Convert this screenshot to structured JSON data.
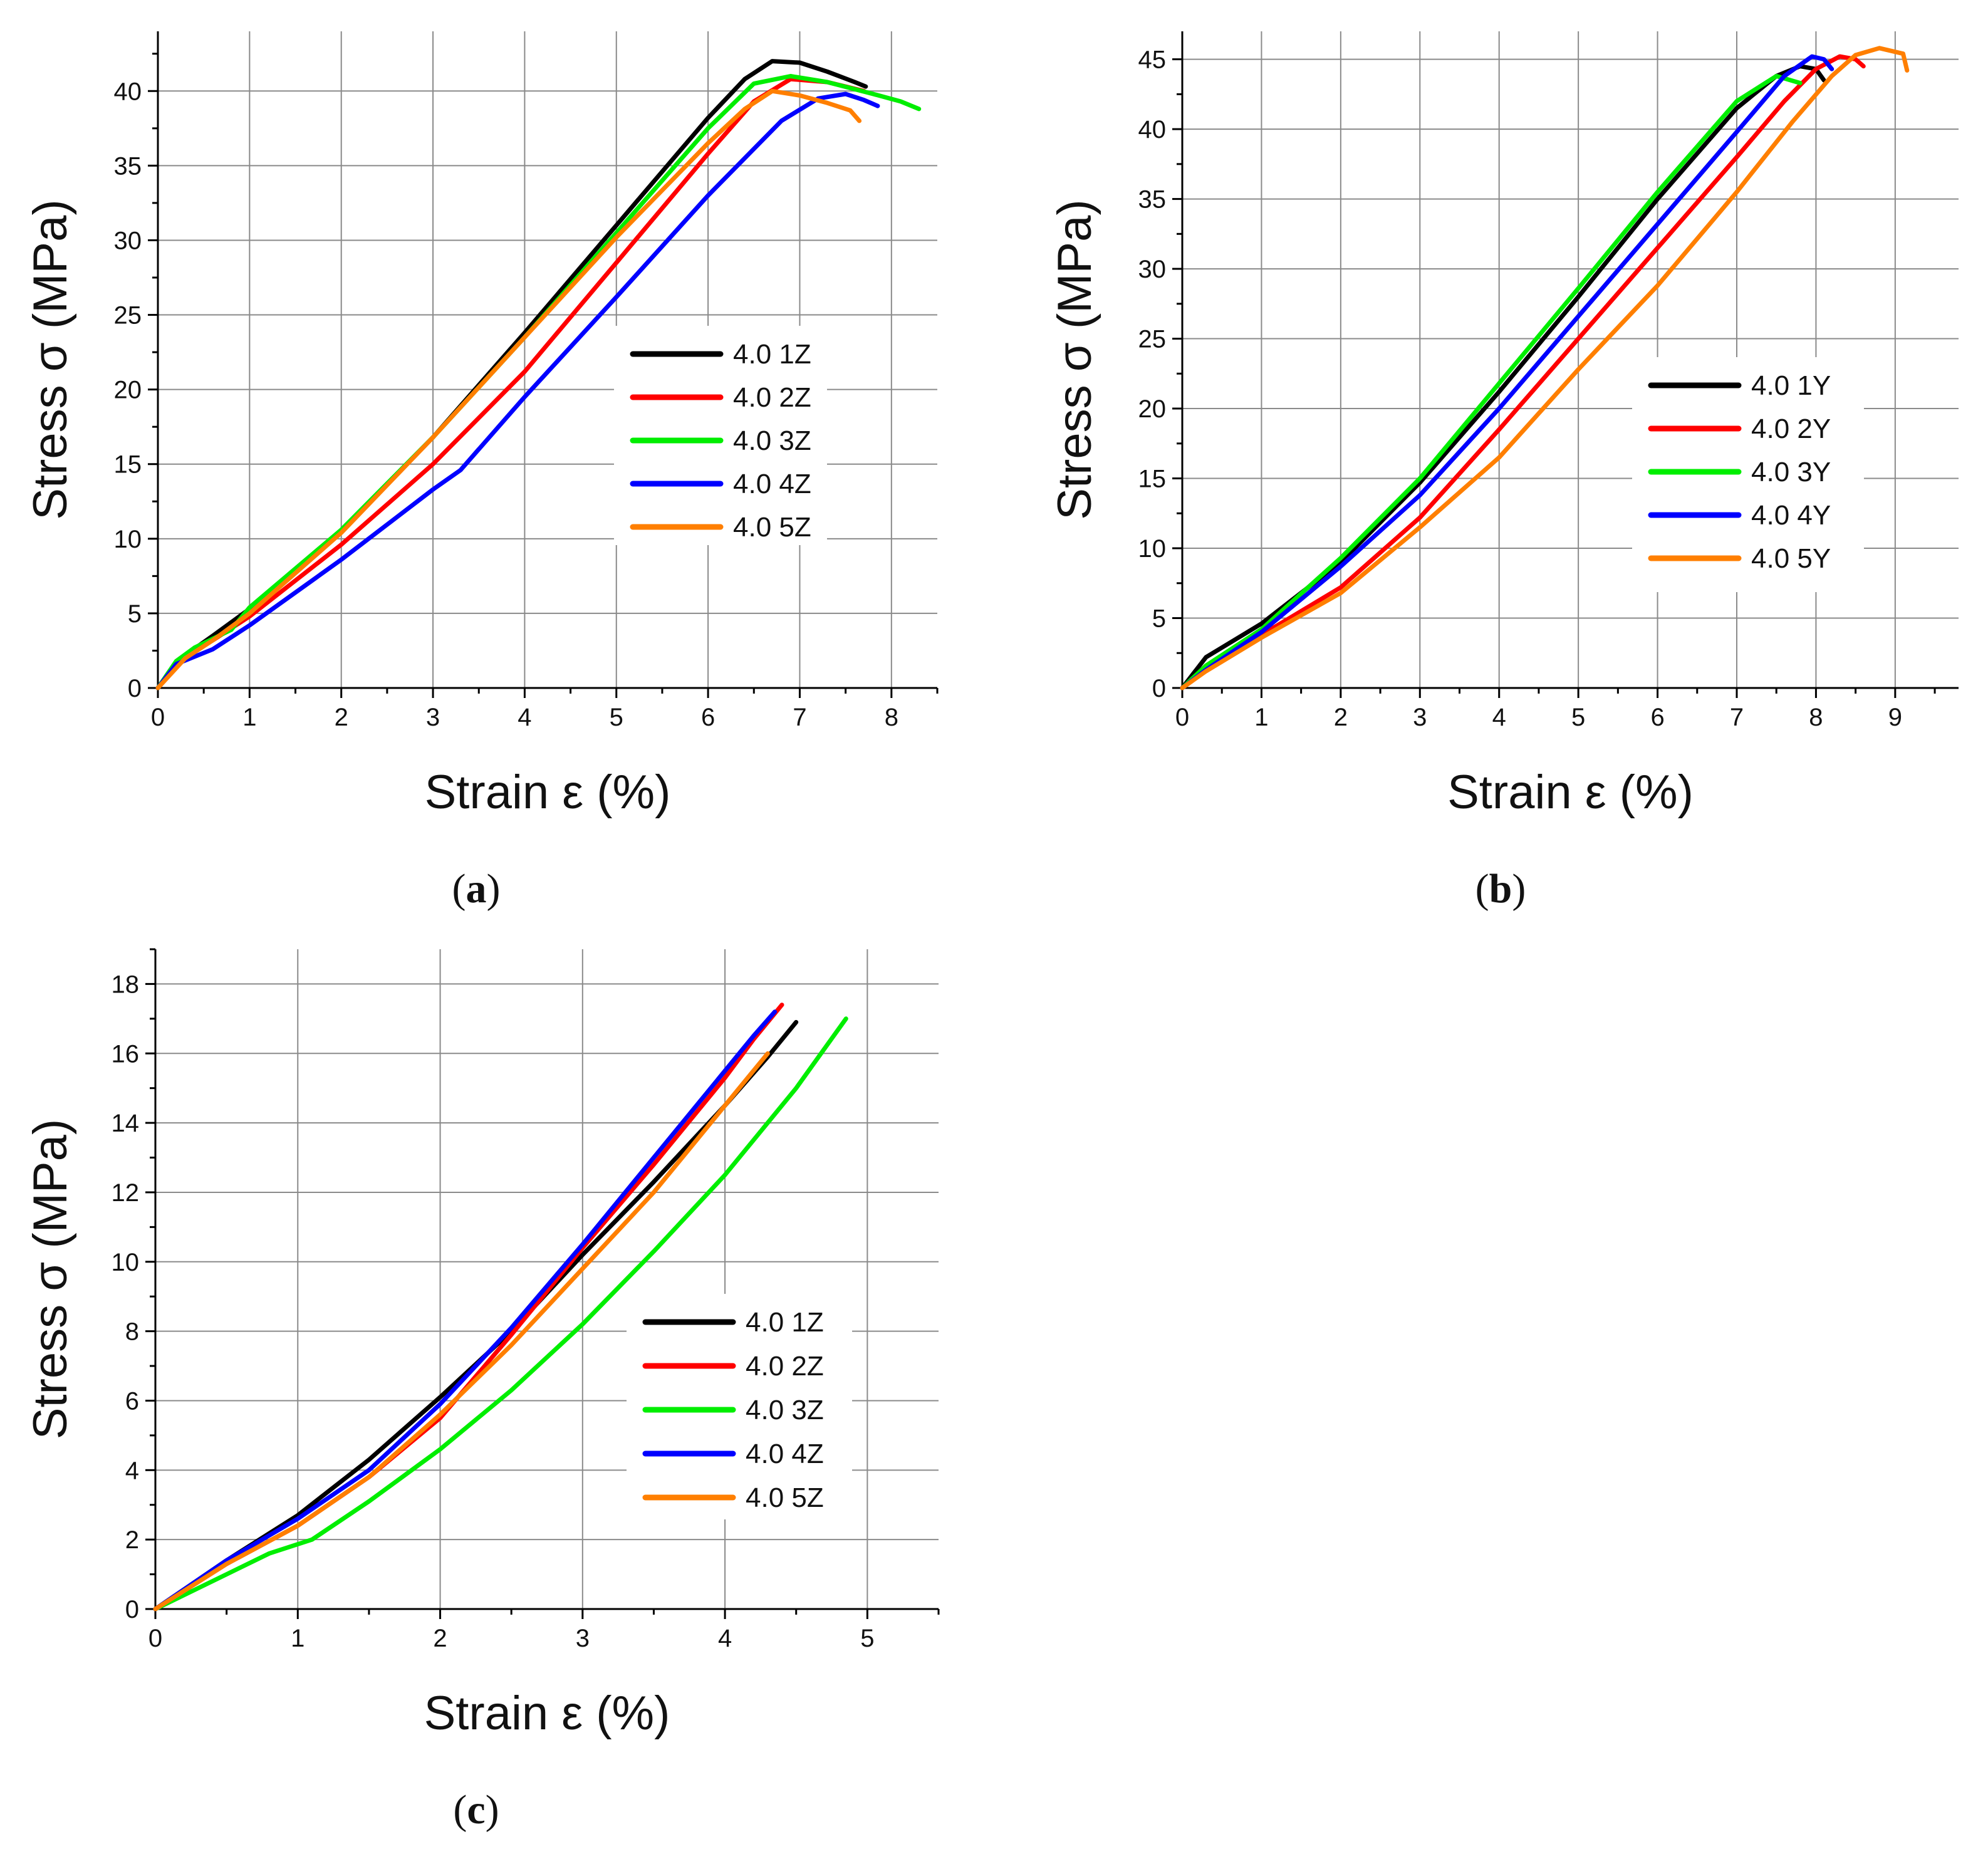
{
  "figure": {
    "panels": [
      {
        "caption_letter": "a",
        "caption_open": "(",
        "caption_close": ")"
      },
      {
        "caption_letter": "b",
        "caption_open": "(",
        "caption_close": ")"
      },
      {
        "caption_letter": "c",
        "caption_open": "(",
        "caption_close": ")"
      }
    ]
  },
  "chart_data": [
    {
      "type": "line",
      "panel": "a",
      "xlabel": "Strain ε (%)",
      "ylabel": "Stress σ (MPa)",
      "xlim": [
        0,
        8.5
      ],
      "ylim": [
        0,
        44
      ],
      "xticks": [
        0,
        1,
        2,
        3,
        4,
        5,
        6,
        7,
        8
      ],
      "yticks": [
        0,
        5,
        10,
        15,
        20,
        25,
        30,
        35,
        40
      ],
      "grid": true,
      "legend_position": "center-right",
      "series": [
        {
          "name": "4.0 1Z",
          "color": "#000000",
          "x": [
            0,
            0.3,
            0.6,
            1.0,
            2.0,
            3.0,
            4.0,
            5.0,
            6.0,
            6.4,
            6.7,
            7.0,
            7.3,
            7.6,
            7.72
          ],
          "y": [
            0,
            2.2,
            3.5,
            5.3,
            10.5,
            16.8,
            23.8,
            31.0,
            38.2,
            40.8,
            42.0,
            41.9,
            41.3,
            40.6,
            40.3
          ]
        },
        {
          "name": "4.0 2Z",
          "color": "#ff0000",
          "x": [
            0,
            0.3,
            0.6,
            1.0,
            2.0,
            3.0,
            4.0,
            5.0,
            6.0,
            6.5,
            6.9,
            7.3,
            7.7
          ],
          "y": [
            0,
            2.1,
            3.2,
            4.8,
            9.6,
            15.0,
            21.2,
            28.5,
            35.8,
            39.3,
            40.8,
            40.6,
            40.0
          ]
        },
        {
          "name": "4.0 3Z",
          "color": "#00ee00",
          "x": [
            0,
            0.2,
            0.4,
            0.8,
            1.0,
            2.0,
            3.0,
            4.0,
            5.0,
            6.0,
            6.5,
            6.9,
            7.3,
            7.8,
            8.1,
            8.3
          ],
          "y": [
            0,
            1.8,
            2.7,
            3.9,
            5.4,
            10.6,
            16.8,
            23.5,
            30.5,
            37.5,
            40.5,
            41.0,
            40.6,
            39.8,
            39.3,
            38.8
          ]
        },
        {
          "name": "4.0 4Z",
          "color": "#0000ff",
          "x": [
            0,
            0.2,
            0.6,
            1.0,
            2.0,
            3.0,
            3.3,
            4.0,
            5.0,
            6.0,
            6.8,
            7.2,
            7.5,
            7.7,
            7.85
          ],
          "y": [
            0,
            1.6,
            2.6,
            4.2,
            8.6,
            13.3,
            14.6,
            19.5,
            26.2,
            33.0,
            38.0,
            39.5,
            39.8,
            39.4,
            39.0
          ]
        },
        {
          "name": "4.0 5Z",
          "color": "#ff7f00",
          "x": [
            0,
            0.3,
            0.6,
            1.0,
            2.0,
            3.0,
            4.0,
            5.0,
            6.0,
            6.4,
            6.7,
            7.0,
            7.3,
            7.55,
            7.65
          ],
          "y": [
            0,
            2.0,
            3.2,
            5.0,
            10.4,
            16.8,
            23.5,
            30.2,
            36.5,
            38.8,
            40.0,
            39.7,
            39.2,
            38.7,
            38.0
          ]
        }
      ]
    },
    {
      "type": "line",
      "panel": "b",
      "xlabel": "Strain ε (%)",
      "ylabel": "Stress σ (MPa)",
      "xlim": [
        0,
        9.8
      ],
      "ylim": [
        0,
        47
      ],
      "xticks": [
        0,
        1,
        2,
        3,
        4,
        5,
        6,
        7,
        8,
        9
      ],
      "yticks": [
        0,
        5,
        10,
        15,
        20,
        25,
        30,
        35,
        40,
        45
      ],
      "grid": true,
      "legend_position": "center-right",
      "series": [
        {
          "name": "4.0 1Y",
          "color": "#000000",
          "x": [
            0,
            0.3,
            1.0,
            2.0,
            3.0,
            4.0,
            5.0,
            6.0,
            7.0,
            7.5,
            7.8,
            8.0,
            8.1
          ],
          "y": [
            0,
            2.2,
            4.6,
            9.0,
            14.7,
            21.2,
            28.0,
            35.0,
            41.5,
            43.8,
            44.5,
            44.3,
            43.5
          ]
        },
        {
          "name": "4.0 2Y",
          "color": "#ff0000",
          "x": [
            0,
            0.3,
            1.0,
            2.0,
            3.0,
            4.0,
            5.0,
            6.0,
            7.0,
            7.6,
            8.0,
            8.3,
            8.5,
            8.6
          ],
          "y": [
            0,
            1.5,
            3.8,
            7.2,
            12.2,
            18.5,
            25.0,
            31.5,
            38.0,
            42.0,
            44.3,
            45.2,
            45.0,
            44.5
          ]
        },
        {
          "name": "4.0 3Y",
          "color": "#00ee00",
          "x": [
            0,
            0.3,
            1.0,
            2.0,
            3.0,
            4.0,
            5.0,
            6.0,
            7.0,
            7.5,
            7.8
          ],
          "y": [
            0,
            1.6,
            4.2,
            9.3,
            15.0,
            21.8,
            28.6,
            35.5,
            42.0,
            43.8,
            43.3
          ]
        },
        {
          "name": "4.0 4Y",
          "color": "#0000ff",
          "x": [
            0,
            0.3,
            1.0,
            2.0,
            3.0,
            4.0,
            5.0,
            6.0,
            7.0,
            7.6,
            7.95,
            8.1,
            8.2
          ],
          "y": [
            0,
            1.3,
            4.0,
            8.7,
            13.8,
            20.0,
            26.6,
            33.2,
            39.8,
            43.8,
            45.2,
            45.0,
            44.3
          ]
        },
        {
          "name": "4.0 5Y",
          "color": "#ff7f00",
          "x": [
            0,
            0.3,
            1.0,
            2.0,
            3.0,
            4.0,
            5.0,
            6.0,
            7.0,
            7.7,
            8.2,
            8.5,
            8.8,
            9.1,
            9.15
          ],
          "y": [
            0,
            1.2,
            3.6,
            6.8,
            11.5,
            16.5,
            22.8,
            28.8,
            35.5,
            40.5,
            43.8,
            45.3,
            45.8,
            45.4,
            44.2
          ]
        }
      ]
    },
    {
      "type": "line",
      "panel": "c",
      "xlabel": "Strain ε (%)",
      "ylabel": "Stress σ (MPa)",
      "xlim": [
        0,
        5.5
      ],
      "ylim": [
        0,
        19
      ],
      "xticks": [
        0,
        1,
        2,
        3,
        4,
        5
      ],
      "yticks": [
        0,
        2,
        4,
        6,
        8,
        10,
        12,
        14,
        16,
        18
      ],
      "grid": true,
      "legend_position": "center-right",
      "series": [
        {
          "name": "4.0 1Z",
          "color": "#000000",
          "x": [
            0,
            0.5,
            1.0,
            1.5,
            2.0,
            2.5,
            3.0,
            3.5,
            4.0,
            4.3,
            4.5
          ],
          "y": [
            0,
            1.4,
            2.7,
            4.3,
            6.1,
            8.0,
            10.2,
            12.3,
            14.5,
            15.9,
            16.9
          ]
        },
        {
          "name": "4.0 2Z",
          "color": "#ff0000",
          "x": [
            0,
            0.5,
            1.0,
            1.5,
            2.0,
            2.5,
            3.0,
            3.5,
            4.0,
            4.2,
            4.4
          ],
          "y": [
            0,
            1.3,
            2.4,
            3.8,
            5.5,
            7.9,
            10.4,
            12.8,
            15.3,
            16.4,
            17.4
          ]
        },
        {
          "name": "4.0 3Z",
          "color": "#00ee00",
          "x": [
            0,
            0.5,
            0.8,
            1.1,
            1.5,
            2.0,
            2.5,
            3.0,
            3.5,
            4.0,
            4.5,
            4.85
          ],
          "y": [
            0,
            1.0,
            1.6,
            2.0,
            3.1,
            4.6,
            6.3,
            8.2,
            10.3,
            12.5,
            15.0,
            17.0
          ]
        },
        {
          "name": "4.0 4Z",
          "color": "#0000ff",
          "x": [
            0,
            0.5,
            1.0,
            1.5,
            2.0,
            2.5,
            3.0,
            3.5,
            4.0,
            4.2,
            4.35
          ],
          "y": [
            0,
            1.4,
            2.6,
            4.0,
            5.9,
            8.1,
            10.5,
            13.0,
            15.5,
            16.5,
            17.2
          ]
        },
        {
          "name": "4.0 5Z",
          "color": "#ff7f00",
          "x": [
            0,
            0.5,
            1.0,
            1.5,
            2.0,
            2.5,
            3.0,
            3.5,
            4.0,
            4.3
          ],
          "y": [
            0,
            1.3,
            2.4,
            3.8,
            5.6,
            7.6,
            9.8,
            12.0,
            14.5,
            16.0
          ]
        }
      ]
    }
  ]
}
